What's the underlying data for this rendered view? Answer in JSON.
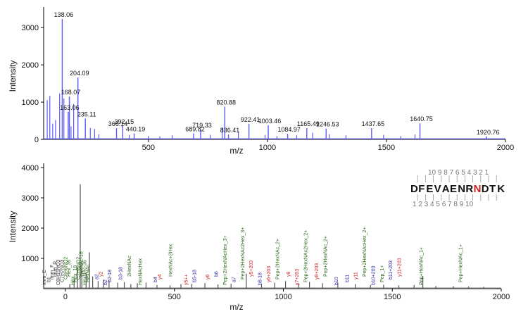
{
  "chart_data": [
    {
      "type": "bar",
      "ylabel": "Intensity",
      "xlabel": "m/z",
      "xlim": [
        60,
        2000
      ],
      "ylim": [
        0,
        3400
      ],
      "xticks": [
        500,
        1000,
        1500,
        2000
      ],
      "yticks": [
        0,
        1000,
        2000,
        3000
      ],
      "bar_color": "#5b5bff",
      "labeled_peaks": [
        {
          "x": 138.06,
          "y": 3230,
          "label": "138.06"
        },
        {
          "x": 204.09,
          "y": 1660,
          "label": "204.09"
        },
        {
          "x": 168.07,
          "y": 1150,
          "label": "168.07"
        },
        {
          "x": 163.06,
          "y": 740,
          "label": "163.06"
        },
        {
          "x": 235.11,
          "y": 560,
          "label": "235.11"
        },
        {
          "x": 366.14,
          "y": 300,
          "label": "366.14"
        },
        {
          "x": 392.15,
          "y": 360,
          "label": "392.15"
        },
        {
          "x": 440.19,
          "y": 160,
          "label": "440.19"
        },
        {
          "x": 689.82,
          "y": 160,
          "label": "689.82"
        },
        {
          "x": 719.33,
          "y": 260,
          "label": "719.33"
        },
        {
          "x": 820.88,
          "y": 880,
          "label": "820.88"
        },
        {
          "x": 836.41,
          "y": 130,
          "label": "836.41"
        },
        {
          "x": 922.41,
          "y": 420,
          "label": "922.41"
        },
        {
          "x": 1003.46,
          "y": 380,
          "label": "1003.46"
        },
        {
          "x": 1084.97,
          "y": 150,
          "label": "1084.97"
        },
        {
          "x": 1165.49,
          "y": 300,
          "label": "1165.49"
        },
        {
          "x": 1246.53,
          "y": 290,
          "label": "1246.53"
        },
        {
          "x": 1437.65,
          "y": 300,
          "label": "1437.65"
        },
        {
          "x": 1640.75,
          "y": 430,
          "label": "1640.75"
        },
        {
          "x": 1920.76,
          "y": 80,
          "label": "1920.76"
        }
      ],
      "unlabeled_peaks": [
        {
          "x": 75,
          "y": 1050
        },
        {
          "x": 86,
          "y": 1170
        },
        {
          "x": 98,
          "y": 420
        },
        {
          "x": 110,
          "y": 520
        },
        {
          "x": 127,
          "y": 1230
        },
        {
          "x": 145,
          "y": 1100
        },
        {
          "x": 186,
          "y": 950
        },
        {
          "x": 175,
          "y": 350
        },
        {
          "x": 256,
          "y": 310
        },
        {
          "x": 274,
          "y": 280
        },
        {
          "x": 292,
          "y": 140
        },
        {
          "x": 420,
          "y": 120
        },
        {
          "x": 500,
          "y": 90
        },
        {
          "x": 548,
          "y": 80
        },
        {
          "x": 600,
          "y": 110
        },
        {
          "x": 760,
          "y": 120
        },
        {
          "x": 810,
          "y": 320
        },
        {
          "x": 878,
          "y": 200
        },
        {
          "x": 990,
          "y": 120
        },
        {
          "x": 1040,
          "y": 90
        },
        {
          "x": 1123,
          "y": 110
        },
        {
          "x": 1190,
          "y": 180
        },
        {
          "x": 1260,
          "y": 140
        },
        {
          "x": 1330,
          "y": 110
        },
        {
          "x": 1488,
          "y": 120
        },
        {
          "x": 1560,
          "y": 90
        },
        {
          "x": 1620,
          "y": 130
        }
      ]
    },
    {
      "type": "bar",
      "ylabel": "Intensity",
      "xlabel": "m/z",
      "xlim": [
        -100,
        2000
      ],
      "ylim": [
        0,
        4000
      ],
      "xticks": [
        0,
        500,
        1000,
        1500,
        2000
      ],
      "yticks": [
        1000,
        2000,
        3000,
        4000
      ],
      "bar_color": "#555555",
      "peaks": [
        {
          "x": 20,
          "y": 150
        },
        {
          "x": 40,
          "y": 300
        },
        {
          "x": 55,
          "y": 700
        },
        {
          "x": 68,
          "y": 3450
        },
        {
          "x": 75,
          "y": 900
        },
        {
          "x": 95,
          "y": 500
        },
        {
          "x": 110,
          "y": 1200
        },
        {
          "x": 125,
          "y": 400
        },
        {
          "x": 150,
          "y": 250
        },
        {
          "x": 175,
          "y": 300
        },
        {
          "x": 200,
          "y": 280
        },
        {
          "x": 240,
          "y": 200
        },
        {
          "x": 270,
          "y": 220
        },
        {
          "x": 300,
          "y": 150
        },
        {
          "x": 330,
          "y": 180
        },
        {
          "x": 370,
          "y": 200
        },
        {
          "x": 420,
          "y": 120
        },
        {
          "x": 480,
          "y": 110
        },
        {
          "x": 530,
          "y": 150
        },
        {
          "x": 580,
          "y": 160
        },
        {
          "x": 640,
          "y": 180
        },
        {
          "x": 700,
          "y": 140
        },
        {
          "x": 760,
          "y": 160
        },
        {
          "x": 830,
          "y": 500
        },
        {
          "x": 900,
          "y": 150
        },
        {
          "x": 960,
          "y": 200
        },
        {
          "x": 1010,
          "y": 250
        },
        {
          "x": 1070,
          "y": 180
        },
        {
          "x": 1120,
          "y": 220
        },
        {
          "x": 1180,
          "y": 180
        },
        {
          "x": 1250,
          "y": 200
        },
        {
          "x": 1330,
          "y": 150
        },
        {
          "x": 1400,
          "y": 120
        },
        {
          "x": 1460,
          "y": 130
        },
        {
          "x": 1530,
          "y": 110
        },
        {
          "x": 1600,
          "y": 120
        },
        {
          "x": 1640,
          "y": 420
        },
        {
          "x": 1700,
          "y": 90
        },
        {
          "x": 1780,
          "y": 80
        },
        {
          "x": 1850,
          "y": 70
        },
        {
          "x": 1920,
          "y": 60
        }
      ],
      "annotations": [
        {
          "x": -90,
          "text": "imm_E",
          "color": "#333333"
        },
        {
          "x": -70,
          "text": "b1",
          "color": "#333333"
        },
        {
          "x": -55,
          "text": "imm_F",
          "color": "#333333"
        },
        {
          "x": -40,
          "text": "imm_R",
          "color": "#333333"
        },
        {
          "x": -25,
          "text": "C8H15NO3",
          "color": "#333333"
        },
        {
          "x": -8,
          "text": "C7H7NO3",
          "color": "#333333"
        },
        {
          "x": 8,
          "text": "C8H6NO2",
          "color": "#2a6a1a"
        },
        {
          "x": 22,
          "text": "Hex_36",
          "color": "#2a6a1a"
        },
        {
          "x": 40,
          "text": "Hex",
          "color": "#2a6a1a"
        },
        {
          "x": 52,
          "text": "Hex_18",
          "color": "#2a6a1a"
        },
        {
          "x": 66,
          "text": "C7H8NO2",
          "color": "#2a6a1a"
        },
        {
          "x": 80,
          "text": "HexNAc-18",
          "color": "#2a6a1a"
        },
        {
          "x": 95,
          "text": "HexNAc-36",
          "color": "#2a6a1a"
        },
        {
          "x": 110,
          "text": "HexNAc",
          "color": "#2a6a1a"
        },
        {
          "x": 150,
          "text": "a2",
          "color": "#2a2aa0"
        },
        {
          "x": 170,
          "text": "y2",
          "color": "#cc2222"
        },
        {
          "x": 190,
          "text": "b2",
          "color": "#2a2aa0"
        },
        {
          "x": 210,
          "text": "b2-18",
          "color": "#2a2aa0"
        },
        {
          "x": 260,
          "text": "b3-18",
          "color": "#2a2aa0"
        },
        {
          "x": 300,
          "text": "2HexNAc",
          "color": "#2a6a1a"
        },
        {
          "x": 350,
          "text": "HexNAcHex",
          "color": "#2a6a1a"
        },
        {
          "x": 420,
          "text": "b4",
          "color": "#2a2aa0"
        },
        {
          "x": 440,
          "text": "y4",
          "color": "#cc2222"
        },
        {
          "x": 490,
          "text": "HexNAc+2Hex",
          "color": "#2a6a1a"
        },
        {
          "x": 560,
          "text": "y5++",
          "color": "#cc2222"
        },
        {
          "x": 600,
          "text": "b5-18",
          "color": "#2a2aa0"
        },
        {
          "x": 660,
          "text": "y6",
          "color": "#cc2222"
        },
        {
          "x": 700,
          "text": "b6",
          "color": "#2a2aa0"
        },
        {
          "x": 740,
          "text": "Pep+2HexNAcHex_3+",
          "color": "#2a6a1a"
        },
        {
          "x": 780,
          "text": "a7",
          "color": "#2a2aa0"
        },
        {
          "x": 820,
          "text": "Pep+2HexNAc2Hex_3+",
          "color": "#2a6a1a"
        },
        {
          "x": 860,
          "text": "y5+203",
          "color": "#cc2222"
        },
        {
          "x": 900,
          "text": "b8-18",
          "color": "#2a2aa0"
        },
        {
          "x": 940,
          "text": "y6+203",
          "color": "#cc2222"
        },
        {
          "x": 980,
          "text": "Pep+2HexNAc_2+",
          "color": "#2a6a1a"
        },
        {
          "x": 1030,
          "text": "y9",
          "color": "#cc2222"
        },
        {
          "x": 1070,
          "text": "y7+203",
          "color": "#cc2222"
        },
        {
          "x": 1110,
          "text": "Pep+2HexNAc2Hex_2+",
          "color": "#2a6a1a"
        },
        {
          "x": 1160,
          "text": "y8+203",
          "color": "#cc2222"
        },
        {
          "x": 1200,
          "text": "Pep+2HexNAc_2+",
          "color": "#2a6a1a"
        },
        {
          "x": 1250,
          "text": "b10",
          "color": "#2a2aa0"
        },
        {
          "x": 1300,
          "text": "b11",
          "color": "#2a2aa0"
        },
        {
          "x": 1340,
          "text": "y11",
          "color": "#cc2222"
        },
        {
          "x": 1380,
          "text": "Pep+2HexNAcHex_2+",
          "color": "#2a6a1a"
        },
        {
          "x": 1420,
          "text": "b10+203",
          "color": "#2a2aa0"
        },
        {
          "x": 1460,
          "text": "Pep_1+",
          "color": "#2a6a1a"
        },
        {
          "x": 1500,
          "text": "b11+203",
          "color": "#2a2aa0"
        },
        {
          "x": 1540,
          "text": "y11+203",
          "color": "#cc2222"
        },
        {
          "x": 1640,
          "text": "Pep+HexNAc_1+",
          "color": "#2a6a1a"
        },
        {
          "x": 1820,
          "text": "Pep+HexNAc_1+",
          "color": "#2a6a1a"
        }
      ],
      "sequence": {
        "residues": [
          "D",
          "F",
          "E",
          "V",
          "A",
          "E",
          "N",
          "R",
          "N",
          "D",
          "T",
          "K"
        ],
        "highlight_index": 8,
        "highlight_color": "#cc2222",
        "top_numbers": "10 9 8 7 6 5 4 3 2 1",
        "bottom_numbers": "1 2 3 4 5 6 7 8 9 10"
      }
    }
  ]
}
